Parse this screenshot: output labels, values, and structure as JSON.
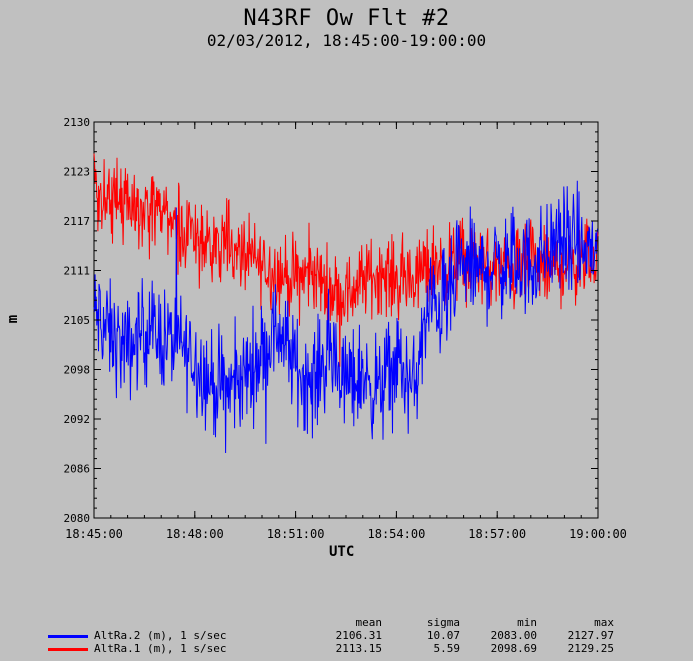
{
  "header": {
    "title": "N43RF Ow Flt #2",
    "subtitle": "02/03/2012, 18:45:00-19:00:00"
  },
  "chart_data": {
    "type": "line",
    "title": "N43RF Ow Flt #2",
    "subtitle": "02/03/2012, 18:45:00-19:00:00",
    "xlabel": "UTC",
    "ylabel": "m",
    "xlim": [
      "18:45:00",
      "19:00:00"
    ],
    "ylim": [
      2080,
      2130
    ],
    "x_ticks": [
      "18:45:00",
      "18:48:00",
      "18:51:00",
      "18:54:00",
      "18:57:00",
      "19:00:00"
    ],
    "y_ticks": [
      "2080",
      "2086",
      "2092",
      "2098",
      "2105",
      "2111",
      "2117",
      "2123",
      "2130"
    ],
    "y_tick_values": [
      2080,
      2086.25,
      2092.5,
      2098.75,
      2105,
      2111.25,
      2117.5,
      2123.75,
      2130
    ],
    "sample_interval": "1 s",
    "legend_position": "bottom",
    "series": [
      {
        "name": "AltRa.2 (m), 1 s/sec",
        "color": "#0000ff",
        "stats": {
          "mean": "2106.31",
          "sigma": "10.07",
          "min": "2083.00",
          "max": "2127.97"
        },
        "trend_minutes": [
          0,
          0.5,
          1,
          1.5,
          2,
          2.5,
          3,
          3.5,
          4,
          4.5,
          5,
          5.5,
          6,
          6.5,
          7,
          7.5,
          8,
          8.5,
          9,
          9.5,
          10,
          10.5,
          11,
          11.5,
          12,
          12.5,
          13,
          13.5,
          14,
          14.5,
          15
        ],
        "trend_values": [
          2106,
          2103,
          2101,
          2104,
          2103,
          2102,
          2100,
          2097,
          2096,
          2098,
          2101,
          2104,
          2099,
          2097,
          2101,
          2097,
          2098,
          2096,
          2100,
          2096,
          2107,
          2107,
          2112,
          2111,
          2112,
          2112,
          2112,
          2114,
          2115,
          2114,
          2114
        ],
        "noise_amplitude": 6
      },
      {
        "name": "AltRa.1 (m), 1 s/sec",
        "color": "#ff0000",
        "stats": {
          "mean": "2113.15",
          "sigma": "5.59",
          "min": "2098.69",
          "max": "2129.25"
        },
        "trend_minutes": [
          0,
          0.5,
          1,
          1.5,
          2,
          2.5,
          3,
          3.5,
          4,
          4.5,
          5,
          5.5,
          6,
          6.5,
          7,
          7.5,
          8,
          8.5,
          9,
          9.5,
          10,
          10.5,
          11,
          11.5,
          12,
          12.5,
          13,
          13.5,
          14,
          14.5,
          15
        ],
        "trend_values": [
          2121,
          2120,
          2120,
          2119,
          2118,
          2117,
          2115,
          2114,
          2114,
          2113,
          2112,
          2111,
          2110,
          2111,
          2109,
          2108,
          2110,
          2111,
          2110,
          2110,
          2112,
          2112,
          2113,
          2112,
          2111,
          2111,
          2112,
          2111,
          2112,
          2112,
          2113
        ],
        "noise_amplitude": 4.5
      }
    ]
  },
  "legend": {
    "headers": {
      "mean": "mean",
      "sigma": "sigma",
      "min": "min",
      "max": "max"
    }
  }
}
